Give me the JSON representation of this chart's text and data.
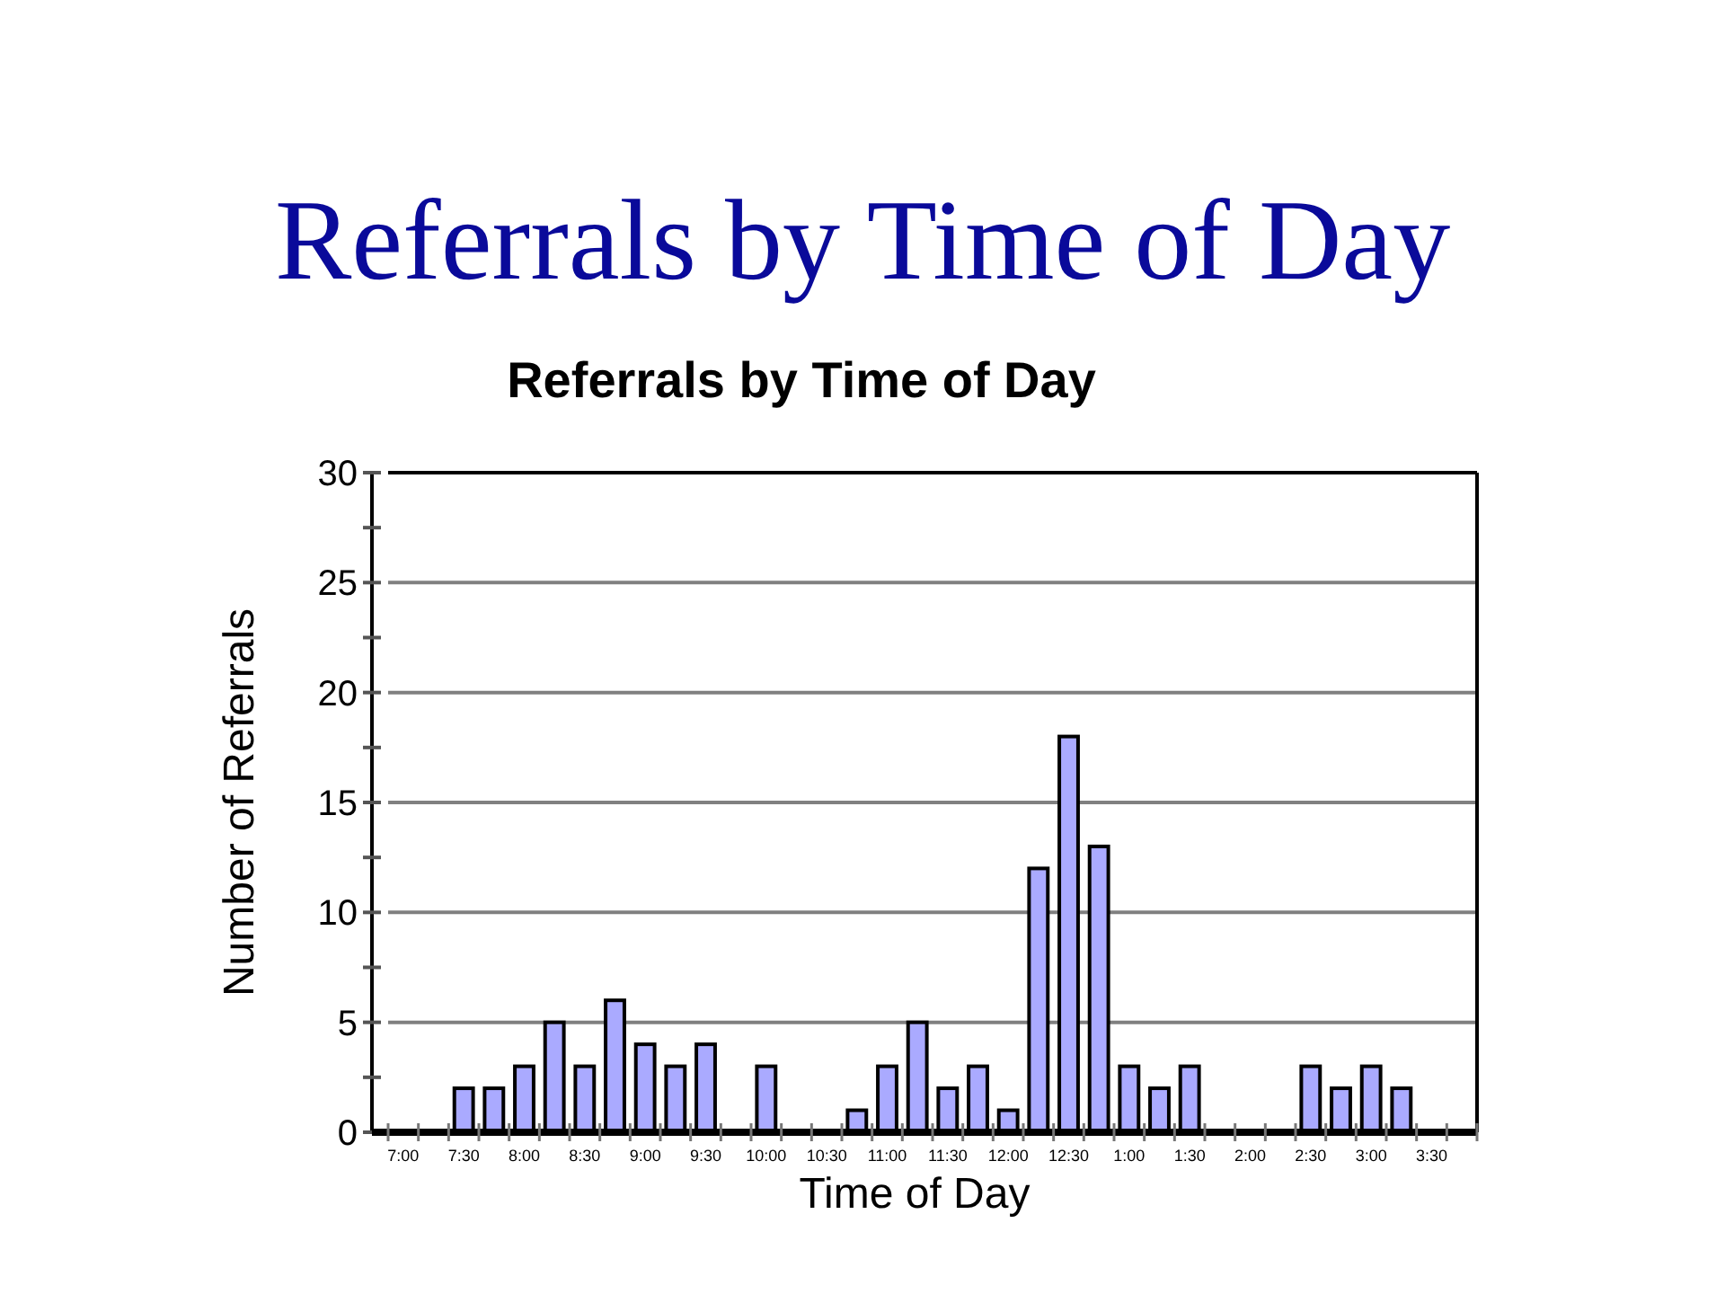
{
  "chart_data": {
    "type": "bar",
    "title": "Referrals by Time of Day",
    "subtitle": "Referrals by Time of Day",
    "xlabel": "Time of Day",
    "ylabel": "Number of Referrals",
    "categories": [
      "7:00",
      null,
      "7:30",
      null,
      "8:00",
      null,
      "8:30",
      null,
      "9:00",
      null,
      "9:30",
      null,
      "10:00",
      null,
      "10:30",
      null,
      "11:00",
      null,
      "11:30",
      null,
      "12:00",
      null,
      "12:30",
      null,
      "1:00",
      null,
      "1:30",
      null,
      "2:00",
      null,
      "2:30",
      null,
      "3:00",
      null,
      "3:30",
      null
    ],
    "values": [
      0,
      0,
      2,
      2,
      3,
      5,
      3,
      6,
      4,
      3,
      4,
      0,
      3,
      0,
      0,
      1,
      3,
      5,
      2,
      3,
      1,
      12,
      18,
      13,
      3,
      2,
      3,
      0,
      0,
      0,
      3,
      2,
      3,
      2,
      0,
      0
    ],
    "color": "#aaaaff",
    "ylim": [
      0,
      30
    ],
    "yticks": [
      0,
      {
        "value": 2.5,
        "label": null
      },
      5,
      {
        "value": 7.5,
        "label": null
      },
      10,
      {
        "value": 12.5,
        "label": null
      },
      15,
      {
        "value": 17.5,
        "label": null
      },
      20,
      {
        "value": 22.5,
        "label": null
      },
      25,
      {
        "value": 27.5,
        "label": null
      },
      30
    ],
    "grid": "y"
  }
}
